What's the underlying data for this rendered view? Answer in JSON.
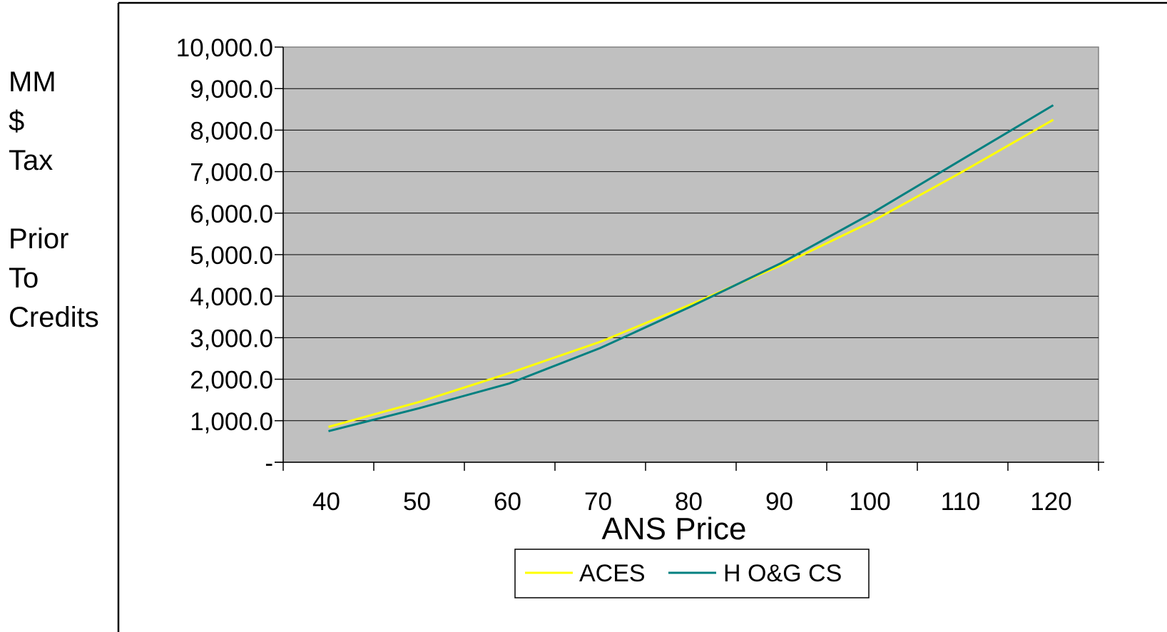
{
  "chart_data": {
    "type": "line",
    "xlabel": "ANS Price",
    "ylabel_lines": [
      "MM",
      "$",
      "Tax",
      "",
      "Prior",
      "To",
      "Credits"
    ],
    "categories": [
      "40",
      "50",
      "60",
      "70",
      "80",
      "90",
      "100",
      "110",
      "120"
    ],
    "y_tick_labels": [
      "-",
      "1,000.0",
      "2,000.0",
      "3,000.0",
      "4,000.0",
      "5,000.0",
      "6,000.0",
      "7,000.0",
      "8,000.0",
      "9,000.0",
      "10,000.0"
    ],
    "ylim": [
      0,
      10000
    ],
    "grid": true,
    "legend_position": "bottom",
    "plot_background": "#c0c0c0",
    "series": [
      {
        "name": "ACES",
        "color": "#ffff00",
        "values": [
          850,
          1450,
          2150,
          2900,
          3800,
          4750,
          5800,
          7000,
          8250
        ]
      },
      {
        "name": "H O&G CS",
        "color": "#008080",
        "values": [
          750,
          1300,
          1900,
          2750,
          3750,
          4800,
          6000,
          7300,
          8600
        ]
      }
    ]
  }
}
